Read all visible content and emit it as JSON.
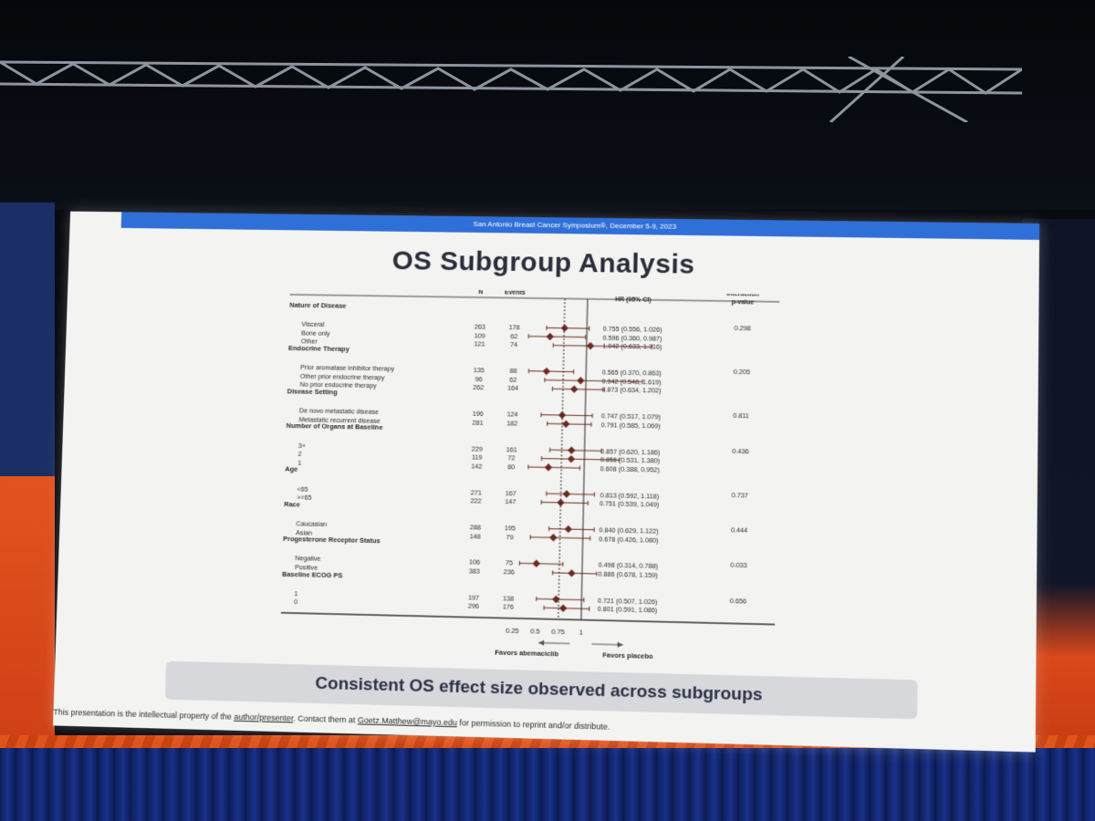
{
  "slide": {
    "header": "San Antonio Breast Cancer Symposium®, December 5-9, 2023",
    "title": "OS Subgroup Analysis",
    "banner": "Consistent OS effect size observed across subgroups",
    "footer": {
      "pre": "This presentation is the intellectual property of the ",
      "author_link": "author/presenter",
      "mid": ". Contact them at ",
      "email": "Goetz.Matthew@mayo.edu",
      "post": " for permission to reprint and/or distribute."
    }
  },
  "chart_data": {
    "type": "forest",
    "columns": {
      "n": "N",
      "events": "Events",
      "hr": "HR (95% CI)",
      "p_line1": "Interaction",
      "p_line2": "p-value"
    },
    "xaxis": {
      "ticks": [
        0.25,
        0.5,
        0.75,
        1
      ],
      "tick_labels": [
        "0.25",
        "0.5",
        "0.75",
        "1"
      ],
      "range": [
        0,
        1.8
      ],
      "reference_line": 1,
      "dashed_line": 0.75
    },
    "favors_left": "Favors abemaciclib",
    "favors_right": "Favors placebo",
    "marker_color": "#6e2a22",
    "groups": [
      {
        "label": "Nature of Disease",
        "p": "0.298",
        "rows": [
          {
            "label": "Visceral",
            "n": "263",
            "events": "178",
            "hr": 0.755,
            "lo": 0.556,
            "hi": 1.026,
            "ci": "0.755 (0.556, 1.026)"
          },
          {
            "label": "Bone only",
            "n": "109",
            "events": "62",
            "hr": 0.596,
            "lo": 0.36,
            "hi": 0.987,
            "ci": "0.596 (0.360, 0.987)"
          },
          {
            "label": "Other",
            "n": "121",
            "events": "74",
            "hr": 1.042,
            "lo": 0.633,
            "hi": 1.716,
            "ci": "1.042 (0.633, 1.716)"
          }
        ]
      },
      {
        "label": "Endocrine Therapy",
        "p": "0.205",
        "rows": [
          {
            "label": "Prior aromatase inhibitor therapy",
            "n": "135",
            "events": "88",
            "hr": 0.565,
            "lo": 0.37,
            "hi": 0.863,
            "ci": "0.565 (0.370, 0.863)"
          },
          {
            "label": "Other prior endocrine therapy",
            "n": "96",
            "events": "62",
            "hr": 0.942,
            "lo": 0.548,
            "hi": 1.619,
            "ci": "0.942 (0.548, 1.619)"
          },
          {
            "label": "No prior endocrine therapy",
            "n": "262",
            "events": "164",
            "hr": 0.873,
            "lo": 0.634,
            "hi": 1.202,
            "ci": "0.873 (0.634, 1.202)"
          }
        ]
      },
      {
        "label": "Disease Setting",
        "p": "0.811",
        "rows": [
          {
            "label": "De novo metastatic disease",
            "n": "196",
            "events": "124",
            "hr": 0.747,
            "lo": 0.517,
            "hi": 1.079,
            "ci": "0.747 (0.517, 1.079)"
          },
          {
            "label": "Metastatic recurrent disease",
            "n": "281",
            "events": "182",
            "hr": 0.791,
            "lo": 0.585,
            "hi": 1.069,
            "ci": "0.791 (0.585, 1.069)"
          }
        ]
      },
      {
        "label": "Number of Organs at Baseline",
        "p": "0.436",
        "rows": [
          {
            "label": "3+",
            "n": "229",
            "events": "161",
            "hr": 0.857,
            "lo": 0.62,
            "hi": 1.186,
            "ci": "0.857 (0.620, 1.186)"
          },
          {
            "label": "2",
            "n": "119",
            "events": "72",
            "hr": 0.856,
            "lo": 0.531,
            "hi": 1.38,
            "ci": "0.856 (0.531, 1.380)"
          },
          {
            "label": "1",
            "n": "142",
            "events": "80",
            "hr": 0.608,
            "lo": 0.388,
            "hi": 0.952,
            "ci": "0.608 (0.388, 0.952)"
          }
        ]
      },
      {
        "label": "Age",
        "p": "0.737",
        "rows": [
          {
            "label": "<65",
            "n": "271",
            "events": "167",
            "hr": 0.813,
            "lo": 0.592,
            "hi": 1.118,
            "ci": "0.813 (0.592, 1.118)"
          },
          {
            "label": ">=65",
            "n": "222",
            "events": "147",
            "hr": 0.751,
            "lo": 0.539,
            "hi": 1.049,
            "ci": "0.751 (0.539, 1.049)"
          }
        ]
      },
      {
        "label": "Race",
        "p": "0.444",
        "rows": [
          {
            "label": "Caucasian",
            "n": "288",
            "events": "195",
            "hr": 0.84,
            "lo": 0.629,
            "hi": 1.122,
            "ci": "0.840 (0.629, 1.122)"
          },
          {
            "label": "Asian",
            "n": "148",
            "events": "79",
            "hr": 0.678,
            "lo": 0.426,
            "hi": 1.08,
            "ci": "0.678 (0.426, 1.080)"
          }
        ]
      },
      {
        "label": "Progesterone Receptor Status",
        "p": "0.033",
        "rows": [
          {
            "label": "Negative",
            "n": "106",
            "events": "75",
            "hr": 0.498,
            "lo": 0.314,
            "hi": 0.788,
            "ci": "0.498 (0.314, 0.788)"
          },
          {
            "label": "Positive",
            "n": "383",
            "events": "236",
            "hr": 0.886,
            "lo": 0.678,
            "hi": 1.159,
            "ci": "0.886 (0.678, 1.159)"
          }
        ]
      },
      {
        "label": "Baseline ECOG PS",
        "p": "0.656",
        "rows": [
          {
            "label": "1",
            "n": "197",
            "events": "138",
            "hr": 0.721,
            "lo": 0.507,
            "hi": 1.026,
            "ci": "0.721 (0.507, 1.026)"
          },
          {
            "label": "0",
            "n": "296",
            "events": "176",
            "hr": 0.801,
            "lo": 0.591,
            "hi": 1.086,
            "ci": "0.801 (0.591, 1.086)"
          }
        ]
      }
    ]
  }
}
